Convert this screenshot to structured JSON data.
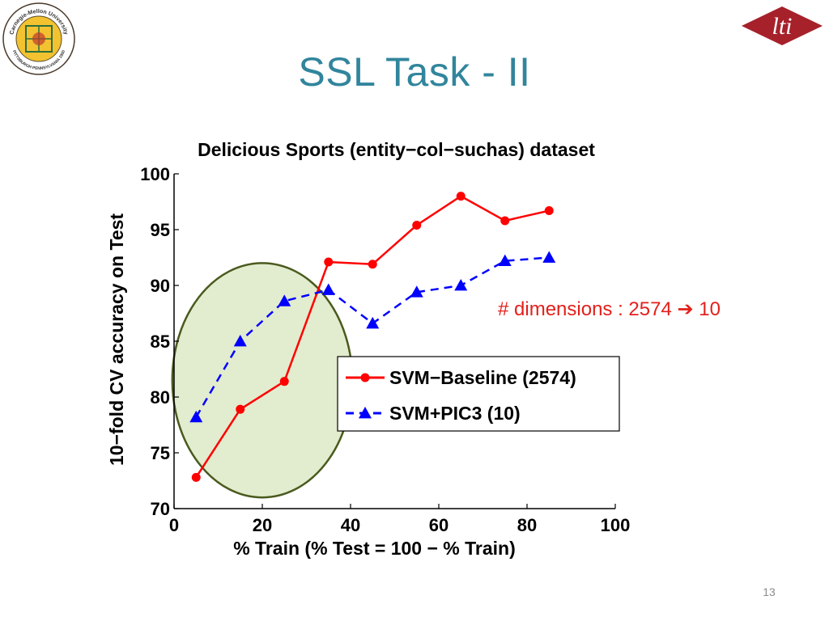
{
  "slide": {
    "title": "SSL Task - II",
    "annotation_text": "# dimensions : 2574",
    "annotation_arrow": "➔",
    "annotation_target": "10",
    "page_number": "13",
    "colors": {
      "title": "#31859c",
      "annotation": "#e3201b",
      "highlight_fill": "#e2ecce",
      "highlight_stroke": "#4a5a1e"
    }
  },
  "logos": {
    "cmu": {
      "icon": "cmu-seal-icon",
      "text_top": "Carnegie-Mellon University",
      "text_bottom": "PITTSBURGH PENNSYLVANIA 1900"
    },
    "lti": {
      "icon": "lti-diamond-icon",
      "text": "lti"
    }
  },
  "chart_data": {
    "type": "line",
    "title": "Delicious Sports (entity−col−suchas) dataset",
    "xlabel": "% Train (% Test = 100 − % Train)",
    "ylabel": "10−fold CV accuracy on Test",
    "xlim": [
      0,
      100
    ],
    "ylim": [
      70,
      100
    ],
    "xticks": [
      0,
      20,
      40,
      60,
      80,
      100
    ],
    "yticks": [
      70,
      75,
      80,
      85,
      90,
      95,
      100
    ],
    "grid": false,
    "legend_position": "center-right",
    "series": [
      {
        "name": "SVM−Baseline (2574)",
        "color": "#ff0000",
        "marker": "circle",
        "line_style": "solid",
        "x": [
          5,
          15,
          25,
          35,
          45,
          55,
          65,
          75,
          85
        ],
        "y": [
          72.8,
          78.9,
          81.4,
          92.1,
          91.9,
          95.4,
          98.0,
          95.8,
          96.7
        ]
      },
      {
        "name": "SVM+PIC3 (10)",
        "color": "#0000ff",
        "marker": "triangle",
        "line_style": "dashed",
        "x": [
          5,
          15,
          25,
          35,
          45,
          55,
          65,
          75,
          85
        ],
        "y": [
          78.2,
          85.0,
          88.6,
          89.6,
          86.6,
          89.4,
          90.0,
          92.2,
          92.5
        ]
      }
    ],
    "highlight": {
      "shape": "ellipse",
      "cx": 20,
      "cy": 81.5,
      "rx_data": 20.4,
      "ry_data": 10.5
    }
  }
}
